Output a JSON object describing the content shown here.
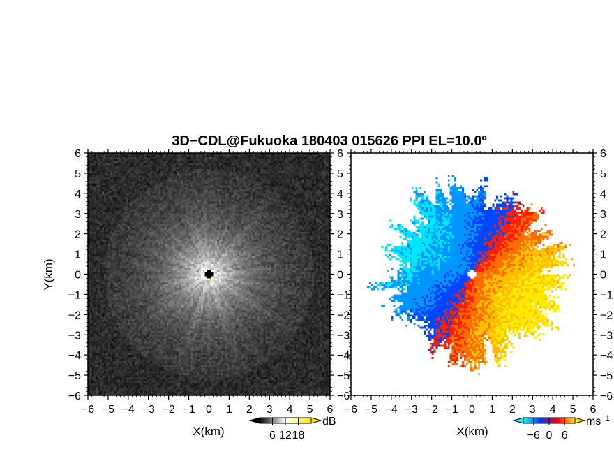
{
  "title": "3D−CDL@Fukuoka 180403 015626 PPI EL=10.0º",
  "chart_data": [
    {
      "type": "heatmap",
      "quantity": "SNR",
      "xlabel": "X(km)",
      "ylabel": "Y(km)",
      "xlim": [
        -6,
        6
      ],
      "ylim": [
        -6,
        6
      ],
      "xticks": [
        "−6",
        "−5",
        "−4",
        "−3",
        "−2",
        "−1",
        "0",
        "1",
        "2",
        "3",
        "4",
        "5",
        "6"
      ],
      "yticks": [
        "6",
        "5",
        "4",
        "3",
        "2",
        "1",
        "0",
        "−1",
        "−2",
        "−3",
        "−4",
        "−5",
        "−6"
      ],
      "colorbar": {
        "unit": "dB",
        "ticks": [
          "6",
          "12",
          "18"
        ],
        "tick_values": [
          6,
          12,
          18
        ],
        "range": [
          0,
          24
        ],
        "colors": [
          "#000000",
          "#ffffff",
          "#f6e600"
        ]
      },
      "radar_center": [
        0,
        0
      ],
      "pattern": "radial streaks, bright near center, fading to noise beyond ~4 km"
    },
    {
      "type": "heatmap",
      "quantity": "Doppler velocity",
      "xlabel": "X(km)",
      "xlim": [
        -6,
        6
      ],
      "ylim": [
        -6,
        6
      ],
      "xticks": [
        "−6",
        "−5",
        "−4",
        "−3",
        "−2",
        "−1",
        "0",
        "1",
        "2",
        "3",
        "4",
        "5",
        "6"
      ],
      "yticks": [
        "6",
        "5",
        "4",
        "3",
        "2",
        "1",
        "0",
        "−1",
        "−2",
        "−3",
        "−4",
        "−5",
        "−6"
      ],
      "colorbar": {
        "unit": "ms",
        "unit_exponent": "−1",
        "ticks": [
          "−6",
          "0",
          "6"
        ],
        "tick_values": [
          -6,
          0,
          6
        ],
        "range": [
          -10,
          10
        ],
        "colors": [
          "#00ffff",
          "#0033ff",
          "#ff0000",
          "#ffee00"
        ]
      },
      "radar_center": [
        0,
        0
      ],
      "pattern": "negative (blue/cyan) to the west and southwest, positive (red/orange/yellow) to the north, east and southeast"
    }
  ]
}
